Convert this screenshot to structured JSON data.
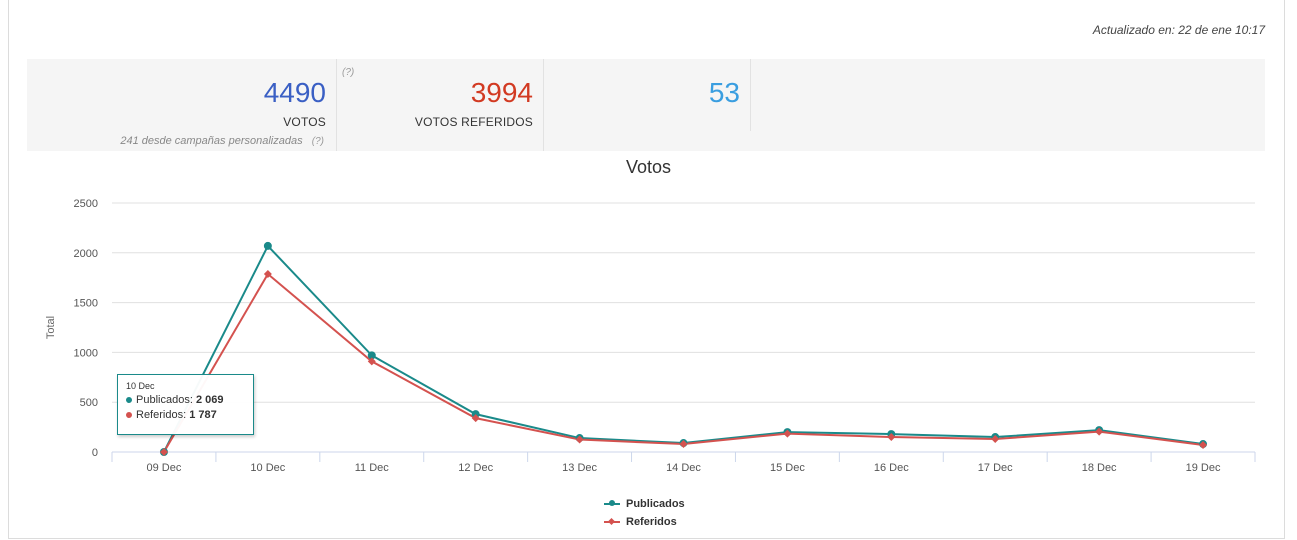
{
  "header": {
    "updated_text": "Actualizado en: 22 de ene 10:17"
  },
  "stats": [
    {
      "value": "4490",
      "label": "VOTOS",
      "color": "#3a5fc4",
      "note": "241 desde campañas personalizadas",
      "note_q": "(?)"
    },
    {
      "value": "3994",
      "label": "VOTOS REFERIDOS",
      "color": "#d23a22",
      "q": "(?)"
    },
    {
      "value": "53",
      "label": "",
      "color": "#3a9ee0"
    }
  ],
  "chart_data": {
    "type": "line",
    "title": "Votos",
    "ylabel": "Total",
    "xlabel": "",
    "ylim": [
      0,
      2500
    ],
    "yticks": [
      0,
      500,
      1000,
      1500,
      2000,
      2500
    ],
    "categories": [
      "09 Dec",
      "10 Dec",
      "11 Dec",
      "12 Dec",
      "13 Dec",
      "14 Dec",
      "15 Dec",
      "16 Dec",
      "17 Dec",
      "18 Dec",
      "19 Dec"
    ],
    "series": [
      {
        "name": "Publicados",
        "color": "#1a8a8a",
        "marker": "circle",
        "values": [
          0,
          2069,
          970,
          380,
          140,
          90,
          200,
          180,
          150,
          220,
          80
        ]
      },
      {
        "name": "Referidos",
        "color": "#d4524f",
        "marker": "diamond",
        "values": [
          0,
          1787,
          910,
          340,
          125,
          80,
          185,
          150,
          130,
          205,
          70
        ]
      }
    ],
    "grid": true,
    "legend": "bottom-center",
    "tooltip": {
      "date": "10 Dec",
      "rows": [
        {
          "name": "Publicados",
          "value": "2 069",
          "color": "#1a8a8a"
        },
        {
          "name": "Referidos",
          "value": "1 787",
          "color": "#d4524f"
        }
      ]
    }
  }
}
